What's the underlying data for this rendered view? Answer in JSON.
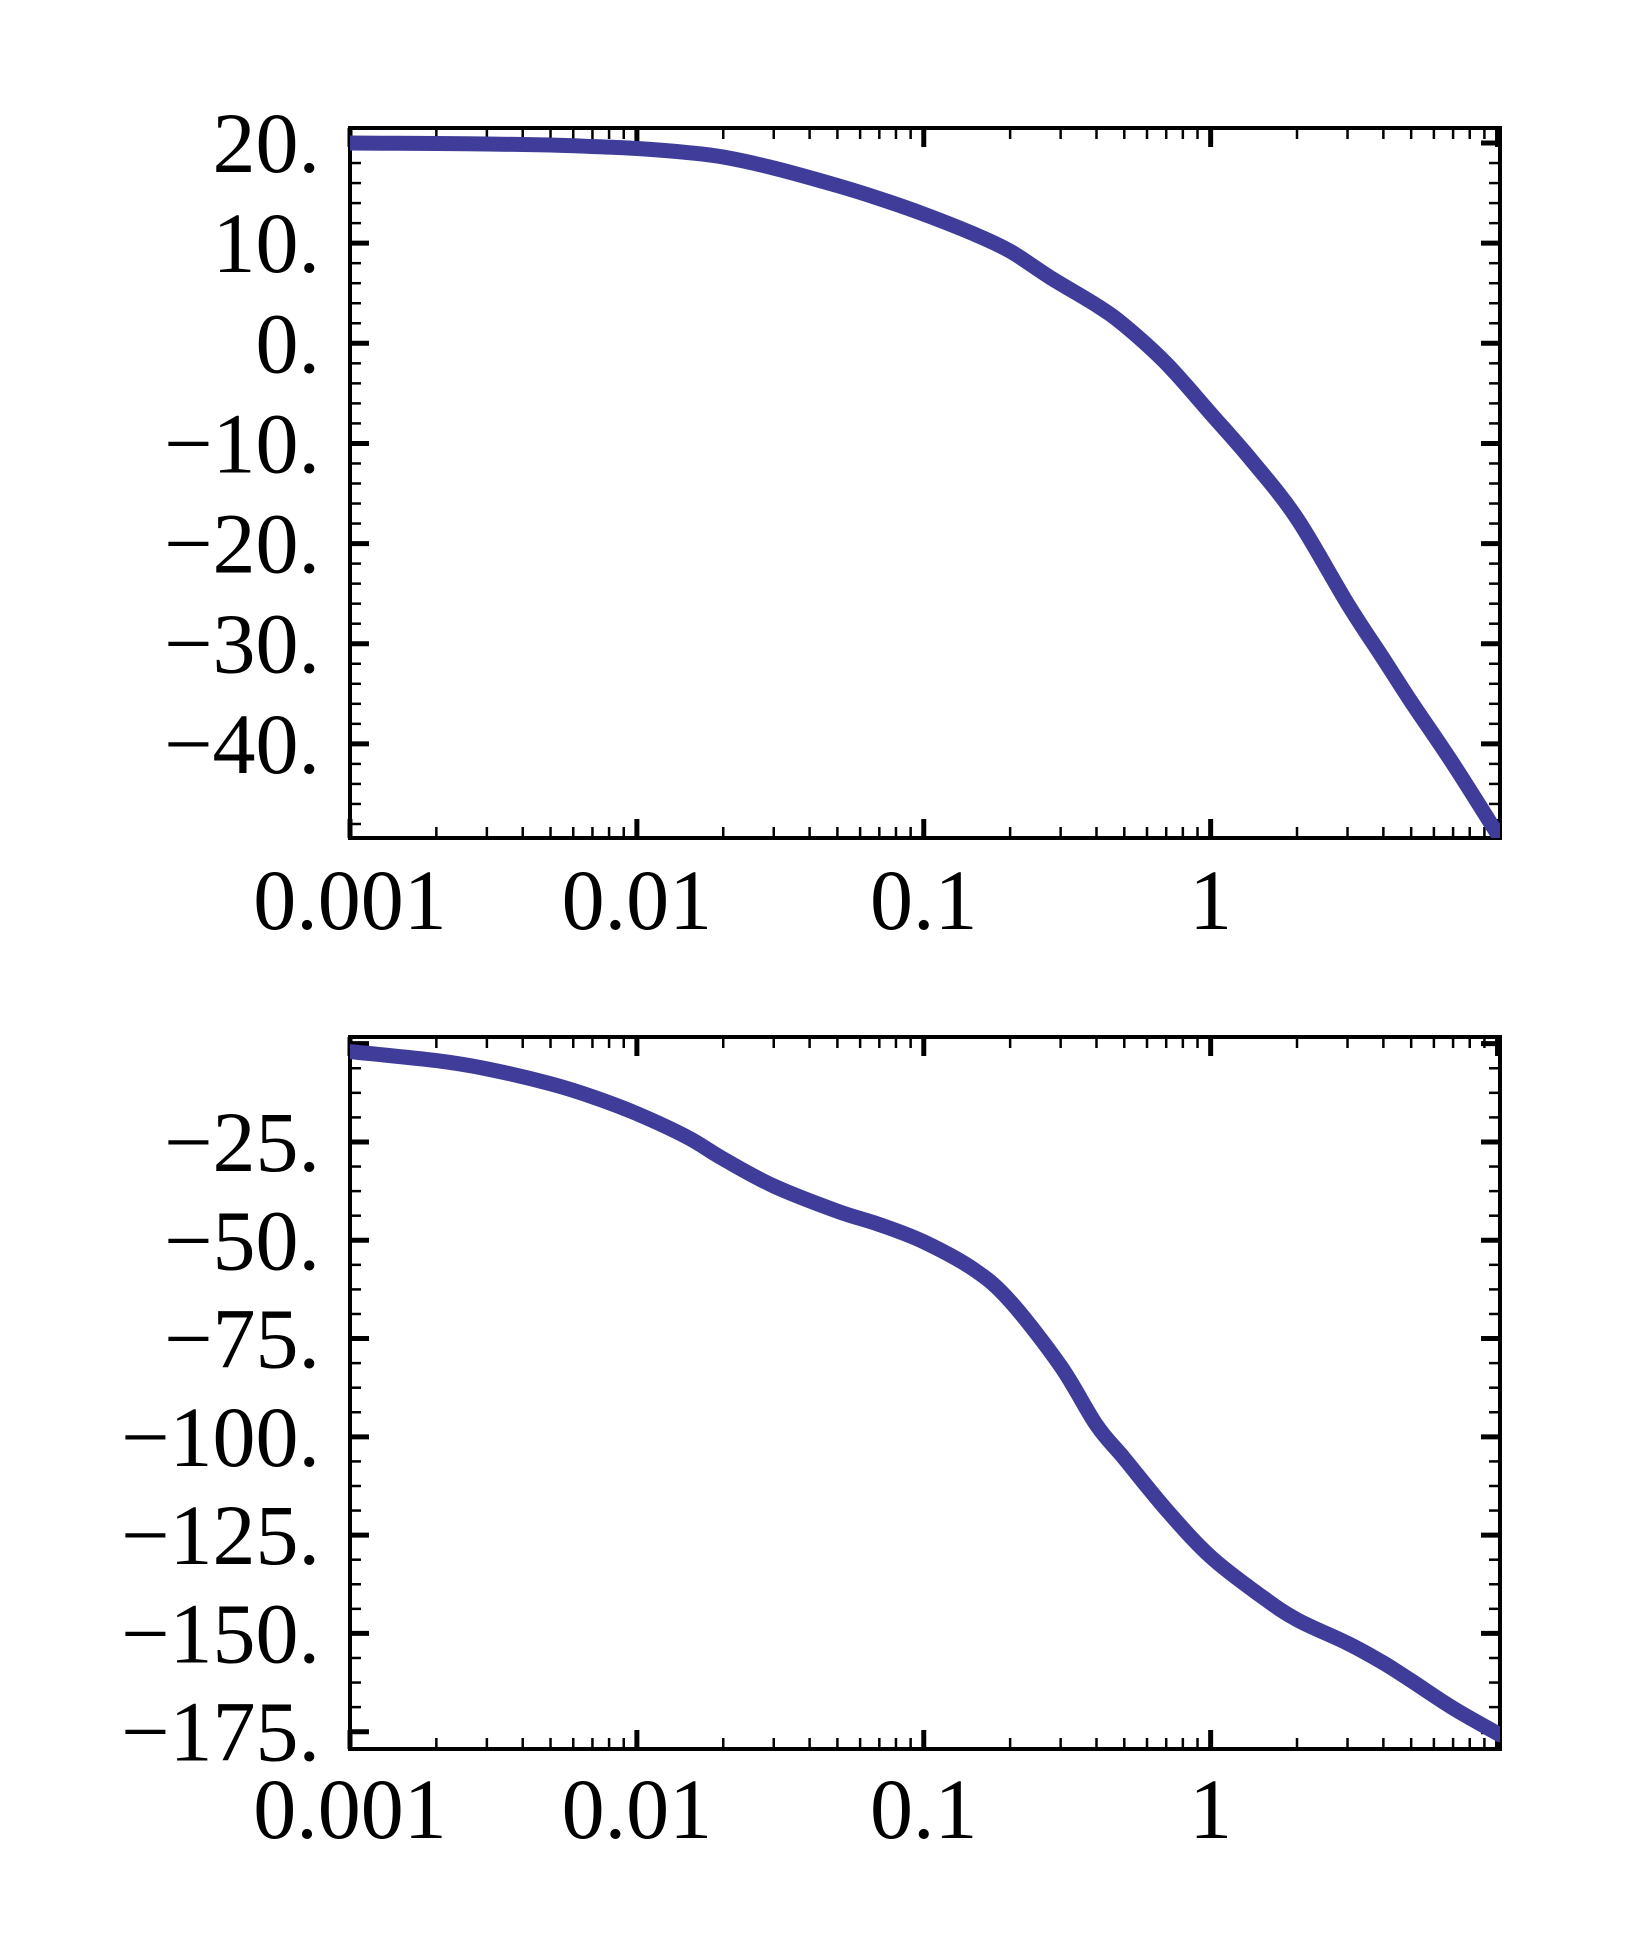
{
  "canvas": {
    "background": "#ffffff",
    "frame_color": "#000000",
    "tick_color": "#000000"
  },
  "chart_data": [
    {
      "type": "line",
      "name": "bode-magnitude",
      "title": "",
      "xlabel": "",
      "ylabel": "",
      "xscale": "log",
      "xlim": [
        0.001,
        10.2
      ],
      "ylim": [
        -49.4,
        21.5
      ],
      "grid": false,
      "legend": "none",
      "line_color": "#3f3d99",
      "line_width": 15,
      "x_labeled_ticks": [
        {
          "value": 0.001,
          "label": "0.001"
        },
        {
          "value": 0.01,
          "label": "0.01"
        },
        {
          "value": 0.1,
          "label": "0.1"
        },
        {
          "value": 1,
          "label": "1"
        },
        {
          "value": 10,
          "label": ""
        }
      ],
      "y_labeled_ticks": [
        {
          "value": 20,
          "label": "20."
        },
        {
          "value": 10,
          "label": "10."
        },
        {
          "value": 0,
          "label": "0."
        },
        {
          "value": -10,
          "label": "−10."
        },
        {
          "value": -20,
          "label": "−20."
        },
        {
          "value": -30,
          "label": "−30."
        },
        {
          "value": -40,
          "label": "−40."
        }
      ],
      "y_major_step": 10,
      "y_minor_step": 2,
      "series": [
        {
          "name": "gain-db",
          "x": [
            0.001,
            0.002,
            0.003,
            0.005,
            0.007,
            0.01,
            0.015,
            0.02,
            0.03,
            0.05,
            0.07,
            0.1,
            0.15,
            0.2,
            0.275,
            0.4,
            0.5,
            0.7,
            1.0,
            1.4,
            2.0,
            3.0,
            4.0,
            5.0,
            7.0,
            10.2
          ],
          "y": [
            20.0,
            19.95,
            19.9,
            19.8,
            19.65,
            19.45,
            19.05,
            18.6,
            17.5,
            15.75,
            14.45,
            12.9,
            10.9,
            9.2,
            6.6,
            3.8,
            1.8,
            -2.0,
            -7.0,
            -11.8,
            -17.5,
            -26.0,
            -31.5,
            -35.8,
            -42.0,
            -49.4
          ]
        }
      ]
    },
    {
      "type": "line",
      "name": "bode-phase",
      "title": "",
      "xlabel": "",
      "ylabel": "",
      "xscale": "log",
      "xlim": [
        0.001,
        10.2
      ],
      "ylim": [
        -179.4,
        1.7
      ],
      "grid": false,
      "legend": "none",
      "line_color": "#3f3d99",
      "line_width": 15,
      "x_labeled_ticks": [
        {
          "value": 0.001,
          "label": "0.001"
        },
        {
          "value": 0.01,
          "label": "0.01"
        },
        {
          "value": 0.1,
          "label": "0.1"
        },
        {
          "value": 1,
          "label": "1"
        },
        {
          "value": 10,
          "label": ""
        }
      ],
      "y_labeled_ticks": [
        {
          "value": 0,
          "label": ""
        },
        {
          "value": -25,
          "label": "−25."
        },
        {
          "value": -50,
          "label": "−50."
        },
        {
          "value": -75,
          "label": "−75."
        },
        {
          "value": -100,
          "label": "−100."
        },
        {
          "value": -125,
          "label": "−125."
        },
        {
          "value": -150,
          "label": "−150."
        },
        {
          "value": -175,
          "label": "−175."
        }
      ],
      "y_major_step": 25,
      "y_minor_step": 6.25,
      "series": [
        {
          "name": "phase-deg",
          "x": [
            0.001,
            0.002,
            0.003,
            0.005,
            0.007,
            0.01,
            0.015,
            0.02,
            0.03,
            0.05,
            0.07,
            0.1,
            0.15,
            0.2,
            0.3,
            0.4,
            0.5,
            0.7,
            1.0,
            1.5,
            2.0,
            3.0,
            4.0,
            5.0,
            7.0,
            10.2
          ],
          "y": [
            -2.0,
            -4.3,
            -6.4,
            -10.2,
            -13.5,
            -17.8,
            -23.8,
            -29.3,
            -36.2,
            -42.6,
            -46.0,
            -50.4,
            -57.5,
            -65.5,
            -82.0,
            -97.0,
            -105.5,
            -118.5,
            -130.5,
            -140.5,
            -146.5,
            -152.5,
            -157.5,
            -162.0,
            -169.0,
            -175.8
          ]
        }
      ]
    }
  ]
}
